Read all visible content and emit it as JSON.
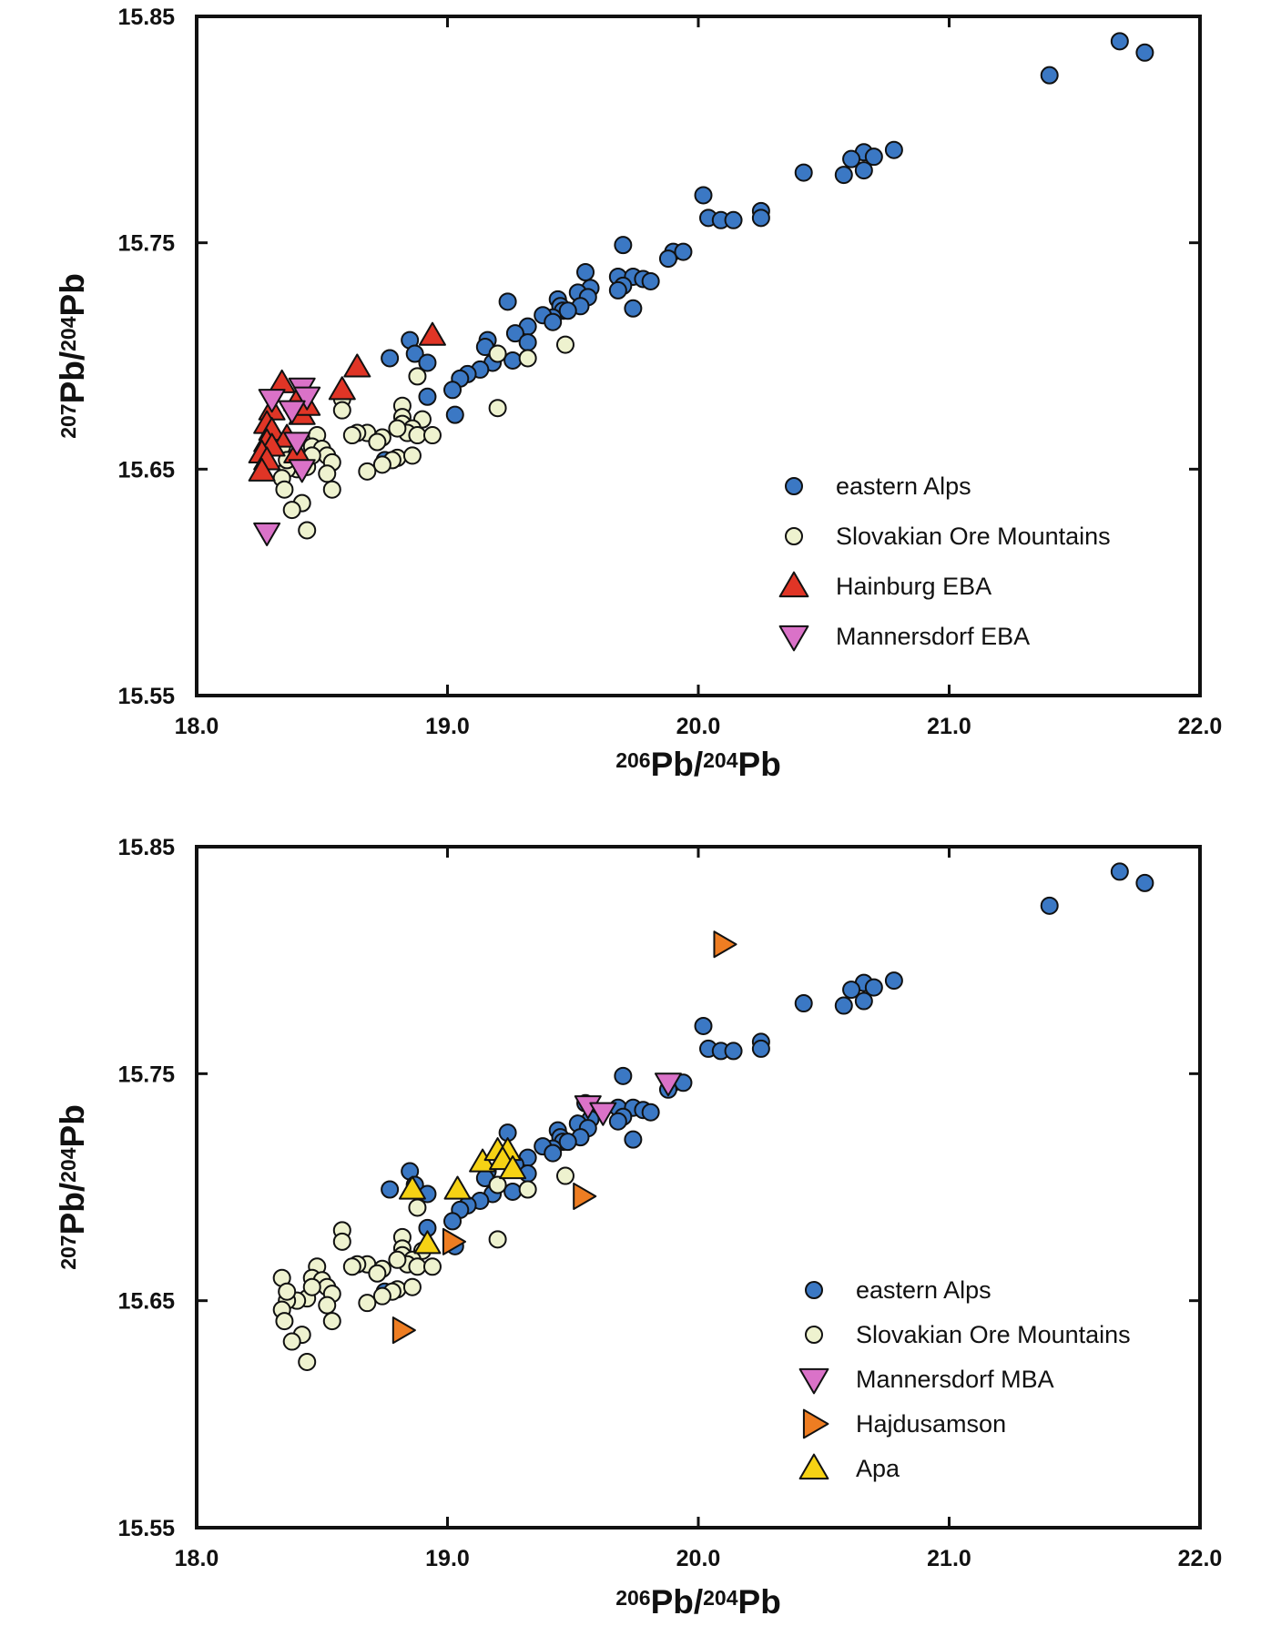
{
  "chart_data": [
    {
      "type": "scatter",
      "title": "",
      "xlabel": {
        "sup1": "206",
        "base1": "Pb/",
        "sup2": "204",
        "base2": "Pb"
      },
      "ylabel": {
        "sup1": "207",
        "base1": "Pb/",
        "sup2": "204",
        "base2": "Pb"
      },
      "xlim": [
        18.0,
        22.0
      ],
      "ylim": [
        15.55,
        15.85
      ],
      "xticks": [
        "18.0",
        "19.0",
        "20.0",
        "21.0",
        "22.0"
      ],
      "yticks": [
        "15.55",
        "15.65",
        "15.75",
        "15.85"
      ],
      "grid": false,
      "legend_position": "bottom-right",
      "series": [
        {
          "name": "eastern Alps",
          "marker": "circle",
          "color": "#3b78c4",
          "points": [
            [
              21.68,
              15.839
            ],
            [
              21.78,
              15.834
            ],
            [
              21.4,
              15.824
            ],
            [
              20.78,
              15.791
            ],
            [
              20.66,
              15.79
            ],
            [
              20.7,
              15.788
            ],
            [
              20.61,
              15.787
            ],
            [
              20.66,
              15.782
            ],
            [
              20.58,
              15.78
            ],
            [
              20.42,
              15.781
            ],
            [
              20.02,
              15.771
            ],
            [
              20.25,
              15.764
            ],
            [
              20.04,
              15.761
            ],
            [
              20.09,
              15.76
            ],
            [
              20.14,
              15.76
            ],
            [
              20.25,
              15.761
            ],
            [
              19.9,
              15.746
            ],
            [
              19.94,
              15.746
            ],
            [
              19.88,
              15.743
            ],
            [
              19.7,
              15.749
            ],
            [
              19.55,
              15.737
            ],
            [
              19.68,
              15.735
            ],
            [
              19.74,
              15.735
            ],
            [
              19.78,
              15.734
            ],
            [
              19.7,
              15.731
            ],
            [
              19.81,
              15.733
            ],
            [
              19.68,
              15.729
            ],
            [
              19.57,
              15.73
            ],
            [
              19.52,
              15.728
            ],
            [
              19.56,
              15.726
            ],
            [
              19.44,
              15.725
            ],
            [
              19.45,
              15.722
            ],
            [
              19.46,
              15.72
            ],
            [
              19.53,
              15.722
            ],
            [
              19.74,
              15.721
            ],
            [
              19.48,
              15.72
            ],
            [
              19.42,
              15.717
            ],
            [
              19.38,
              15.718
            ],
            [
              19.42,
              15.715
            ],
            [
              19.24,
              15.724
            ],
            [
              19.32,
              15.713
            ],
            [
              19.27,
              15.71
            ],
            [
              19.16,
              15.707
            ],
            [
              19.15,
              15.704
            ],
            [
              19.32,
              15.706
            ],
            [
              18.85,
              15.707
            ],
            [
              19.26,
              15.698
            ],
            [
              19.18,
              15.697
            ],
            [
              19.13,
              15.694
            ],
            [
              19.08,
              15.692
            ],
            [
              19.05,
              15.69
            ],
            [
              19.02,
              15.685
            ],
            [
              18.92,
              15.682
            ],
            [
              19.03,
              15.674
            ],
            [
              18.77,
              15.699
            ],
            [
              18.87,
              15.701
            ],
            [
              18.92,
              15.697
            ],
            [
              18.75,
              15.654
            ]
          ]
        },
        {
          "name": "Slovakian Ore Mountains",
          "marker": "circle",
          "color": "#eef2cf",
          "points": [
            [
              19.47,
              15.705
            ],
            [
              19.32,
              15.699
            ],
            [
              19.2,
              15.701
            ],
            [
              18.88,
              15.691
            ],
            [
              18.58,
              15.681
            ],
            [
              18.58,
              15.676
            ],
            [
              18.82,
              15.678
            ],
            [
              19.2,
              15.677
            ],
            [
              18.82,
              15.673
            ],
            [
              18.82,
              15.67
            ],
            [
              18.9,
              15.672
            ],
            [
              18.86,
              15.668
            ],
            [
              18.84,
              15.666
            ],
            [
              18.8,
              15.668
            ],
            [
              18.68,
              15.666
            ],
            [
              18.64,
              15.666
            ],
            [
              18.62,
              15.665
            ],
            [
              18.74,
              15.664
            ],
            [
              18.88,
              15.665
            ],
            [
              18.94,
              15.665
            ],
            [
              18.72,
              15.662
            ],
            [
              18.48,
              15.665
            ],
            [
              18.46,
              15.66
            ],
            [
              18.5,
              15.659
            ],
            [
              18.34,
              15.66
            ],
            [
              18.52,
              15.656
            ],
            [
              18.54,
              15.653
            ],
            [
              18.44,
              15.651
            ],
            [
              18.4,
              15.65
            ],
            [
              18.36,
              15.65
            ],
            [
              18.52,
              15.648
            ],
            [
              18.34,
              15.646
            ],
            [
              18.8,
              15.655
            ],
            [
              18.86,
              15.656
            ],
            [
              18.78,
              15.654
            ],
            [
              18.74,
              15.652
            ],
            [
              18.68,
              15.649
            ],
            [
              18.54,
              15.641
            ],
            [
              18.35,
              15.641
            ],
            [
              18.42,
              15.635
            ],
            [
              18.38,
              15.632
            ],
            [
              18.44,
              15.623
            ],
            [
              18.36,
              15.654
            ],
            [
              18.46,
              15.656
            ]
          ]
        },
        {
          "name": "Hainburg EBA",
          "marker": "triangle-up",
          "color": "#e03526",
          "points": [
            [
              18.94,
              15.709
            ],
            [
              18.64,
              15.695
            ],
            [
              18.58,
              15.685
            ],
            [
              18.34,
              15.688
            ],
            [
              18.4,
              15.68
            ],
            [
              18.42,
              15.674
            ],
            [
              18.3,
              15.676
            ],
            [
              18.28,
              15.67
            ],
            [
              18.3,
              15.667
            ],
            [
              18.36,
              15.664
            ],
            [
              18.28,
              15.662
            ],
            [
              18.3,
              15.66
            ],
            [
              18.26,
              15.657
            ],
            [
              18.28,
              15.654
            ],
            [
              18.26,
              15.649
            ],
            [
              18.4,
              15.657
            ],
            [
              18.44,
              15.678
            ]
          ]
        },
        {
          "name": "Mannersdorf EBA",
          "marker": "triangle-down",
          "color": "#da72c8",
          "points": [
            [
              18.3,
              15.681
            ],
            [
              18.42,
              15.686
            ],
            [
              18.44,
              15.682
            ],
            [
              18.38,
              15.676
            ],
            [
              18.4,
              15.662
            ],
            [
              18.42,
              15.65
            ],
            [
              18.28,
              15.622
            ]
          ]
        }
      ]
    },
    {
      "type": "scatter",
      "title": "",
      "xlabel": {
        "sup1": "206",
        "base1": "Pb/",
        "sup2": "204",
        "base2": "Pb"
      },
      "ylabel": {
        "sup1": "207",
        "base1": "Pb/",
        "sup2": "204",
        "base2": "Pb"
      },
      "xlim": [
        18.0,
        22.0
      ],
      "ylim": [
        15.55,
        15.85
      ],
      "xticks": [
        "18.0",
        "19.0",
        "20.0",
        "21.0",
        "22.0"
      ],
      "yticks": [
        "15.55",
        "15.65",
        "15.75",
        "15.85"
      ],
      "grid": false,
      "legend_position": "bottom-right",
      "series": [
        {
          "name": "eastern Alps",
          "marker": "circle",
          "color": "#3b78c4",
          "points": [
            [
              21.68,
              15.839
            ],
            [
              21.78,
              15.834
            ],
            [
              21.4,
              15.824
            ],
            [
              20.78,
              15.791
            ],
            [
              20.66,
              15.79
            ],
            [
              20.7,
              15.788
            ],
            [
              20.61,
              15.787
            ],
            [
              20.66,
              15.782
            ],
            [
              20.58,
              15.78
            ],
            [
              20.42,
              15.781
            ],
            [
              20.02,
              15.771
            ],
            [
              20.25,
              15.764
            ],
            [
              20.04,
              15.761
            ],
            [
              20.09,
              15.76
            ],
            [
              20.14,
              15.76
            ],
            [
              20.25,
              15.761
            ],
            [
              19.9,
              15.746
            ],
            [
              19.94,
              15.746
            ],
            [
              19.88,
              15.743
            ],
            [
              19.7,
              15.749
            ],
            [
              19.55,
              15.737
            ],
            [
              19.68,
              15.735
            ],
            [
              19.74,
              15.735
            ],
            [
              19.78,
              15.734
            ],
            [
              19.7,
              15.731
            ],
            [
              19.81,
              15.733
            ],
            [
              19.68,
              15.729
            ],
            [
              19.57,
              15.73
            ],
            [
              19.52,
              15.728
            ],
            [
              19.56,
              15.726
            ],
            [
              19.44,
              15.725
            ],
            [
              19.45,
              15.722
            ],
            [
              19.46,
              15.72
            ],
            [
              19.53,
              15.722
            ],
            [
              19.74,
              15.721
            ],
            [
              19.48,
              15.72
            ],
            [
              19.42,
              15.717
            ],
            [
              19.38,
              15.718
            ],
            [
              19.42,
              15.715
            ],
            [
              19.24,
              15.724
            ],
            [
              19.32,
              15.713
            ],
            [
              19.27,
              15.71
            ],
            [
              19.16,
              15.707
            ],
            [
              19.15,
              15.704
            ],
            [
              19.32,
              15.706
            ],
            [
              18.85,
              15.707
            ],
            [
              19.26,
              15.698
            ],
            [
              19.18,
              15.697
            ],
            [
              19.13,
              15.694
            ],
            [
              19.08,
              15.692
            ],
            [
              19.05,
              15.69
            ],
            [
              19.02,
              15.685
            ],
            [
              18.92,
              15.682
            ],
            [
              19.03,
              15.674
            ],
            [
              18.77,
              15.699
            ],
            [
              18.87,
              15.701
            ],
            [
              18.92,
              15.697
            ],
            [
              18.75,
              15.654
            ]
          ]
        },
        {
          "name": "Slovakian Ore Mountains",
          "marker": "circle",
          "color": "#eef2cf",
          "points": [
            [
              19.47,
              15.705
            ],
            [
              19.32,
              15.699
            ],
            [
              19.2,
              15.701
            ],
            [
              18.88,
              15.691
            ],
            [
              18.58,
              15.681
            ],
            [
              18.58,
              15.676
            ],
            [
              18.82,
              15.678
            ],
            [
              19.2,
              15.677
            ],
            [
              18.82,
              15.673
            ],
            [
              18.82,
              15.67
            ],
            [
              18.9,
              15.672
            ],
            [
              18.86,
              15.668
            ],
            [
              18.84,
              15.666
            ],
            [
              18.8,
              15.668
            ],
            [
              18.68,
              15.666
            ],
            [
              18.64,
              15.666
            ],
            [
              18.62,
              15.665
            ],
            [
              18.74,
              15.664
            ],
            [
              18.88,
              15.665
            ],
            [
              18.94,
              15.665
            ],
            [
              18.72,
              15.662
            ],
            [
              18.48,
              15.665
            ],
            [
              18.46,
              15.66
            ],
            [
              18.5,
              15.659
            ],
            [
              18.34,
              15.66
            ],
            [
              18.52,
              15.656
            ],
            [
              18.54,
              15.653
            ],
            [
              18.44,
              15.651
            ],
            [
              18.4,
              15.65
            ],
            [
              18.36,
              15.65
            ],
            [
              18.52,
              15.648
            ],
            [
              18.34,
              15.646
            ],
            [
              18.8,
              15.655
            ],
            [
              18.86,
              15.656
            ],
            [
              18.78,
              15.654
            ],
            [
              18.74,
              15.652
            ],
            [
              18.68,
              15.649
            ],
            [
              18.54,
              15.641
            ],
            [
              18.35,
              15.641
            ],
            [
              18.42,
              15.635
            ],
            [
              18.38,
              15.632
            ],
            [
              18.44,
              15.623
            ],
            [
              18.36,
              15.654
            ],
            [
              18.46,
              15.656
            ]
          ]
        },
        {
          "name": "Mannersdorf MBA",
          "marker": "triangle-down",
          "color": "#da72c8",
          "points": [
            [
              19.56,
              15.736
            ],
            [
              19.62,
              15.733
            ],
            [
              19.88,
              15.746
            ]
          ]
        },
        {
          "name": "Hajdusamson",
          "marker": "triangle-right",
          "color": "#ee7d22",
          "points": [
            [
              20.1,
              15.807
            ],
            [
              19.54,
              15.696
            ],
            [
              19.02,
              15.676
            ],
            [
              18.82,
              15.637
            ]
          ]
        },
        {
          "name": "Apa",
          "marker": "triangle-up",
          "color": "#f6d214",
          "points": [
            [
              19.14,
              15.711
            ],
            [
              19.2,
              15.716
            ],
            [
              19.24,
              15.716
            ],
            [
              19.22,
              15.712
            ],
            [
              19.26,
              15.708
            ],
            [
              18.86,
              15.699
            ],
            [
              19.04,
              15.699
            ],
            [
              18.92,
              15.675
            ]
          ]
        }
      ]
    }
  ]
}
